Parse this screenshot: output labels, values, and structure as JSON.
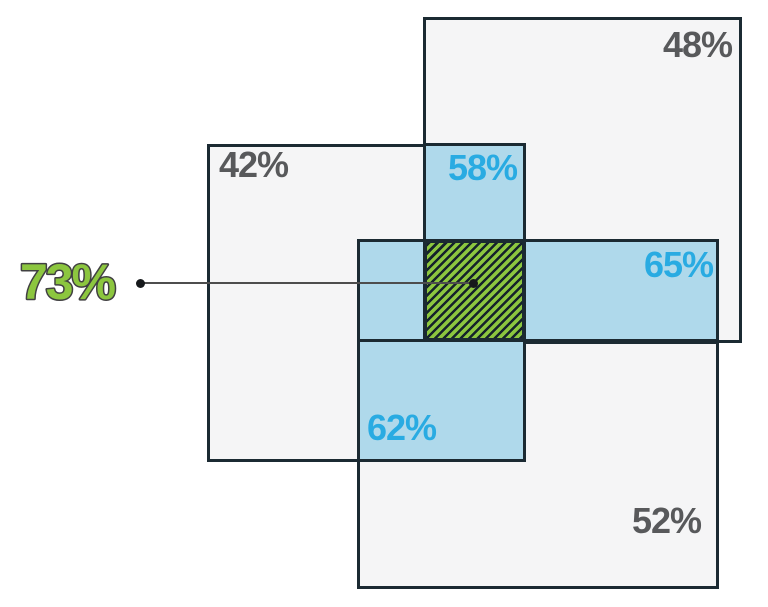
{
  "diagram": {
    "description": "Overlapping rectangles percentage diagram",
    "gray_regions": [
      {
        "id": "top-right",
        "value": "48%"
      },
      {
        "id": "left",
        "value": "42%"
      },
      {
        "id": "bottom-right",
        "value": "52%"
      }
    ],
    "blue_overlaps": [
      {
        "id": "top-middle",
        "value": "58%"
      },
      {
        "id": "bottom-middle",
        "value": "62%"
      },
      {
        "id": "right-bar",
        "value": "65%"
      }
    ],
    "center_overlap": {
      "id": "center-hatched",
      "value": "73%"
    }
  },
  "colors": {
    "background": "#FFFFFF",
    "panel_fill": "#F5F5F6",
    "panel_border": "#1B2A32",
    "blue_fill": "#AFD9EB",
    "blue_text": "#29ABE2",
    "gray_text": "#58595B",
    "green": "#8CC63F",
    "hatch_stripe": "#15232B",
    "leader_line": "#4D4D4D"
  }
}
